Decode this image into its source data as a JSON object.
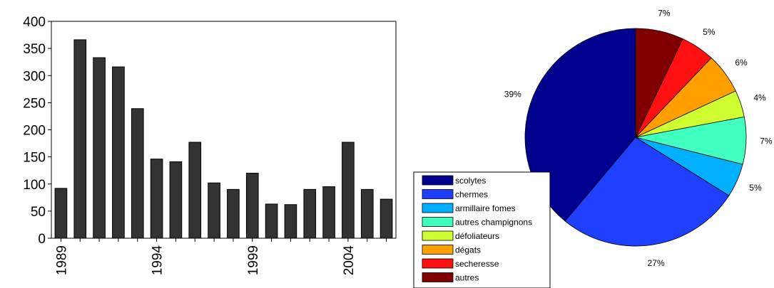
{
  "chart_data": [
    {
      "type": "bar",
      "title": "",
      "xlabel": "",
      "ylabel": "",
      "x": [
        1989,
        1990,
        1991,
        1992,
        1993,
        1994,
        1995,
        1996,
        1997,
        1998,
        1999,
        2000,
        2001,
        2002,
        2003,
        2004,
        2005,
        2006
      ],
      "values": [
        92,
        366,
        333,
        316,
        239,
        146,
        141,
        177,
        102,
        90,
        120,
        63,
        62,
        90,
        95,
        177,
        90,
        72
      ],
      "ylim": [
        0,
        400
      ],
      "yticks": [
        0,
        50,
        100,
        150,
        200,
        250,
        300,
        350,
        400
      ],
      "xtick_labels": [
        "1989",
        "1994",
        "1999",
        "2004"
      ],
      "grid": false,
      "bar_color": "#333333"
    },
    {
      "type": "pie",
      "title": "",
      "slices": [
        {
          "label": "scolytes",
          "value": 39,
          "display": "39%",
          "color": "#00008f"
        },
        {
          "label": "chermes",
          "value": 27,
          "display": "27%",
          "color": "#1f3fff"
        },
        {
          "label": "armillaire fomes",
          "value": 5,
          "display": "5%",
          "color": "#00afff"
        },
        {
          "label": "autres champignons",
          "value": 7,
          "display": "7%",
          "color": "#40ffbf"
        },
        {
          "label": "défoliateurs",
          "value": 4,
          "display": "4%",
          "color": "#cfff30"
        },
        {
          "label": "dégats",
          "value": 6,
          "display": "6%",
          "color": "#ffa000"
        },
        {
          "label": "secheresse",
          "value": 5,
          "display": "5%",
          "color": "#ff1010"
        },
        {
          "label": "autres",
          "value": 7,
          "display": "7%",
          "color": "#800000"
        }
      ],
      "start": "top",
      "direction": "counterclockwise",
      "legend_position": "bottom-left"
    }
  ]
}
